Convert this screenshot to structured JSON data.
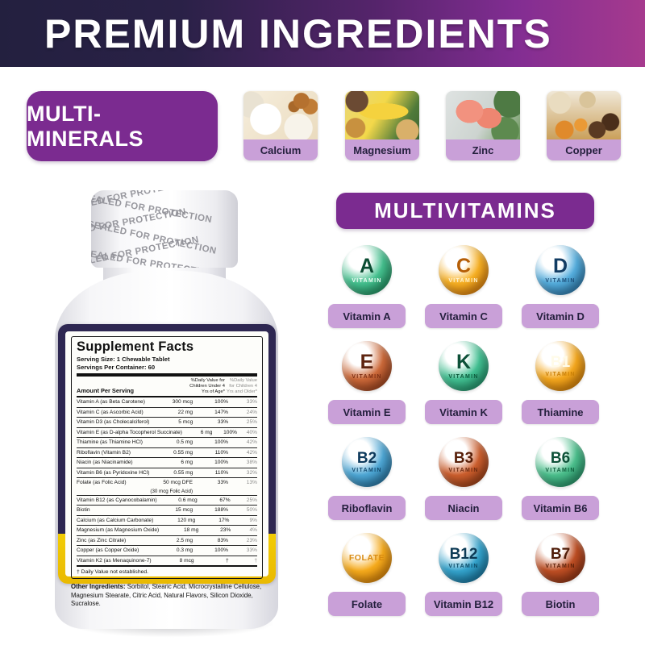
{
  "header": {
    "title": "PREMIUM INGREDIENTS"
  },
  "colors": {
    "banner_left": "#23203f",
    "banner_right": "#a63a8e",
    "section_purple": "#7b2b90",
    "pill_purple": "#c9a0d8",
    "label_navy": "#2e2752",
    "label_yellow": "#f2cc04"
  },
  "minerals": {
    "section_label": "MULTI-MINERALS",
    "items": [
      {
        "label": "Calcium",
        "image": "dairy"
      },
      {
        "label": "Magnesium",
        "image": "bananas-nuts"
      },
      {
        "label": "Zinc",
        "image": "salmon"
      },
      {
        "label": "Copper",
        "image": "dried-fruits"
      }
    ]
  },
  "vitamins": {
    "section_label": "MULTIVITAMINS",
    "items": [
      {
        "letter": "A",
        "word": "VITAMIN",
        "label": "Vitamin A",
        "color": "#45c18f",
        "dark": "#1f8f5f",
        "letter_color": "#0b4d33",
        "word_color": "#f2fff8"
      },
      {
        "letter": "C",
        "word": "VITAMIN",
        "label": "Vitamin C",
        "color": "#f7b023",
        "dark": "#e07d0a",
        "letter_color": "#b55e07",
        "word_color": "#fff3cf"
      },
      {
        "letter": "D",
        "word": "VITAMIN",
        "label": "Vitamin D",
        "color": "#55aede",
        "dark": "#2a77ab",
        "letter_color": "#123c63",
        "word_color": "#1d4f79"
      },
      {
        "letter": "E",
        "word": "VITAMIN",
        "label": "Vitamin E",
        "color": "#cd6a3a",
        "dark": "#9c3f1a",
        "letter_color": "#5e2410",
        "word_color": "#7e2f14"
      },
      {
        "letter": "K",
        "word": "VITAMIN",
        "label": "Vitamin K",
        "color": "#43c193",
        "dark": "#1d8f66",
        "letter_color": "#0d5038",
        "word_color": "#0d5a3c"
      },
      {
        "letter": "B1",
        "word": "VITAMIN",
        "label": "Thiamine",
        "color": "#f5a81e",
        "dark": "#d87f06",
        "letter_color": "#fffbe8",
        "word_color": "#c97f06"
      },
      {
        "letter": "B2",
        "word": "VITAMIN",
        "label": "Riboflavin",
        "color": "#4fa8d6",
        "dark": "#22719f",
        "letter_color": "#0e3a5c",
        "word_color": "#134a6e"
      },
      {
        "letter": "B3",
        "word": "VITAMIN",
        "label": "Niacin",
        "color": "#cd5f2e",
        "dark": "#993c14",
        "letter_color": "#571f09",
        "word_color": "#6b2a10"
      },
      {
        "letter": "B6",
        "word": "VITAMIN",
        "label": "Vitamin B6",
        "color": "#4cc08d",
        "dark": "#219065",
        "letter_color": "#0e5138",
        "word_color": "#11603e"
      },
      {
        "letter": "FOLATE",
        "word": "",
        "label": "Folate",
        "color": "#f6ab1c",
        "dark": "#dd8206",
        "letter_color": "#d98a10",
        "word_color": "#d98a10"
      },
      {
        "letter": "B12",
        "word": "VITAMIN",
        "label": "Vitamin B12",
        "color": "#35a4cd",
        "dark": "#13719b",
        "letter_color": "#0c3a55",
        "word_color": "#0e4b66"
      },
      {
        "letter": "B7",
        "word": "VITAMIN",
        "label": "Biotin",
        "color": "#bf4f24",
        "dark": "#8c3112",
        "letter_color": "#4f1c08",
        "word_color": "#5c2008"
      }
    ]
  },
  "bottle": {
    "seal_text": "SEALED FOR PROTECTION",
    "label": {
      "title": "Supplement Facts",
      "serving_size": "Serving Size: 1 Chewable Tablet",
      "servings_per_container": "Servings Per Container: 60",
      "amount_header": "Amount Per Serving",
      "dv_header_1": "%Daily Value for Children Under 4 Yrs of Age*",
      "dv_header_2": "%Daily Value for Children 4 Yrs and Older*",
      "rows": [
        {
          "name": "Vitamin A (as Beta Carotene)",
          "amount": "300 mcg",
          "dv1": "100%",
          "dv2": "33%"
        },
        {
          "name": "Vitamin C (as Ascorbic Acid)",
          "amount": "22 mg",
          "dv1": "147%",
          "dv2": "24%"
        },
        {
          "name": "Vitamin D3 (as Cholecalciferol)",
          "amount": "5 mcg",
          "dv1": "33%",
          "dv2": "25%"
        },
        {
          "name": "Vitamin E (as D-alpha Tocopherol Succinate)",
          "amount": "6 mg",
          "dv1": "100%",
          "dv2": "40%"
        },
        {
          "name": "Thiamine (as Thiamine HCl)",
          "amount": "0.5 mg",
          "dv1": "100%",
          "dv2": "42%"
        },
        {
          "name": "Riboflavin (Vitamin B2)",
          "amount": "0.55 mg",
          "dv1": "110%",
          "dv2": "42%"
        },
        {
          "name": "Niacin (as Niacinamide)",
          "amount": "6 mg",
          "dv1": "100%",
          "dv2": "38%"
        },
        {
          "name": "Vitamin B6 (as Pyridoxine HCl)",
          "amount": "0.55 mg",
          "dv1": "110%",
          "dv2": "32%"
        },
        {
          "name": "Folate (as Folic Acid)",
          "amount": "50 mcg DFE",
          "sub": "(30 mcg Folic Acid)",
          "dv1": "33%",
          "dv2": "13%"
        },
        {
          "name": "Vitamin B12 (as Cyanocobalamin)",
          "amount": "0.6 mcg",
          "dv1": "67%",
          "dv2": "25%"
        },
        {
          "name": "Biotin",
          "amount": "15 mcg",
          "dv1": "188%",
          "dv2": "50%"
        },
        {
          "name": "Calcium (as Calcium Carbonate)",
          "amount": "120 mg",
          "dv1": "17%",
          "dv2": "9%"
        },
        {
          "name": "Magnesium (as Magnesium Oxide)",
          "amount": "18 mg",
          "dv1": "23%",
          "dv2": "4%"
        },
        {
          "name": "Zinc (as Zinc Citrate)",
          "amount": "2.5 mg",
          "dv1": "83%",
          "dv2": "23%"
        },
        {
          "name": "Copper (as Copper Oxide)",
          "amount": "0.3 mg",
          "dv1": "100%",
          "dv2": "33%"
        },
        {
          "name": "Vitamin K2 (as Menaquinone-7)",
          "amount": "8 mcg",
          "dv1": "†",
          "dv2": "†"
        }
      ],
      "footnote": "† Daily Value not established.",
      "other_ingredients_label": "Other Ingredients:",
      "other_ingredients": "Sorbitol, Stearic Acid, Microcrystalline Cellulose, Magnesium Stearate, Citric Acid, Natural Flavors, Silicon Dioxide, Sucralose."
    }
  }
}
